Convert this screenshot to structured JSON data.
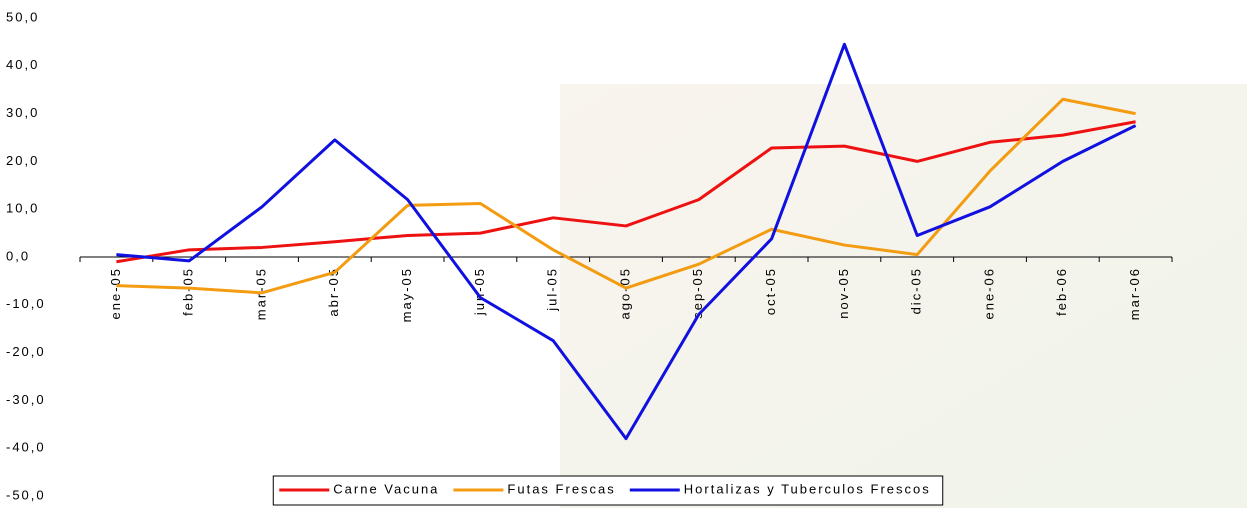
{
  "chart_data": {
    "type": "line",
    "categories": [
      "ene-05",
      "feb-05",
      "mar-05",
      "abr-05",
      "may-05",
      "jun-05",
      "jul-05",
      "ago-05",
      "sep-05",
      "oct-05",
      "nov-05",
      "dic-05",
      "ene-06",
      "feb-06",
      "mar-06"
    ],
    "series": [
      {
        "name": "Carne Vacuna",
        "color": "#ee1111",
        "values": [
          -1.0,
          1.5,
          2.0,
          3.2,
          4.5,
          5.0,
          8.2,
          6.5,
          12.0,
          22.8,
          23.2,
          20.0,
          24.0,
          25.5,
          28.3
        ]
      },
      {
        "name": "Futas Frescas",
        "color": "#f39c12",
        "values": [
          -6.0,
          -6.5,
          -7.5,
          -3.2,
          10.8,
          11.2,
          1.5,
          -6.5,
          -1.5,
          5.8,
          2.5,
          0.5,
          18.0,
          33.0,
          30.0
        ]
      },
      {
        "name": "Hortalizas y Tuberculos Frescos",
        "color": "#1010e0",
        "values": [
          0.5,
          -0.8,
          10.5,
          24.5,
          12.0,
          -8.5,
          -17.5,
          -38.0,
          -12.0,
          3.8,
          44.5,
          4.5,
          10.5,
          20.0,
          27.5
        ]
      }
    ],
    "ylim": [
      -50,
      50
    ],
    "yticks": [
      {
        "value": 50,
        "label": "50,0"
      },
      {
        "value": 40,
        "label": "40,0"
      },
      {
        "value": 30,
        "label": "30,0"
      },
      {
        "value": 20,
        "label": "20,0"
      },
      {
        "value": 10,
        "label": "10,0"
      },
      {
        "value": 0,
        "label": "0,0"
      },
      {
        "value": -10,
        "label": "-10,0"
      },
      {
        "value": -20,
        "label": "-20,0"
      },
      {
        "value": -30,
        "label": "-30,0"
      },
      {
        "value": -40,
        "label": "-40,0"
      },
      {
        "value": -50,
        "label": "-50,0"
      }
    ],
    "legend": "bottom"
  }
}
